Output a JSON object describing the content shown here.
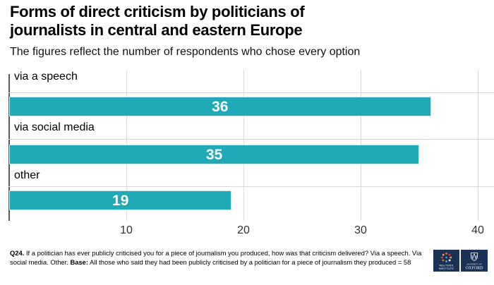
{
  "header": {
    "title": "Forms of direct criticism by politicians of journalists in central and eastern Europe",
    "subtitle": "The figures reflect the number of respondents who chose every option"
  },
  "chart_data": {
    "type": "bar",
    "orientation": "horizontal",
    "categories": [
      "via a speech",
      "via social media",
      "other"
    ],
    "values": [
      36,
      35,
      19
    ],
    "value_labels": [
      "36",
      "35",
      "19"
    ],
    "value_label_position": "inside-center",
    "xticks": [
      10,
      20,
      30,
      40
    ],
    "xlim": [
      0,
      41.3
    ],
    "grid": "vertical-gridlines-with-row-separators",
    "legend": "none",
    "bar_color": "#20aab7",
    "value_label_color": "#ffffff"
  },
  "footnote": {
    "q_label": "Q24.",
    "q_text": "If a politician has ever publicly criticised you for a piece of journalism you produced, how was that criticism delivered? Via a speech. Via social media. Other.",
    "base_label": "Base:",
    "base_text": "All those who said they had been publicly criticised by a politician for a piece of journalism they produced = 58"
  },
  "logos": {
    "reuters": {
      "line1": "REUTERS",
      "line2": "INSTITUTE"
    },
    "oxford": {
      "line1": "UNIVERSITY OF",
      "line2": "OXFORD"
    }
  },
  "colors": {
    "bar": "#20aab7",
    "gridline": "#d9d9d9",
    "axis": "#595959",
    "logo_background": "#1b3156"
  }
}
